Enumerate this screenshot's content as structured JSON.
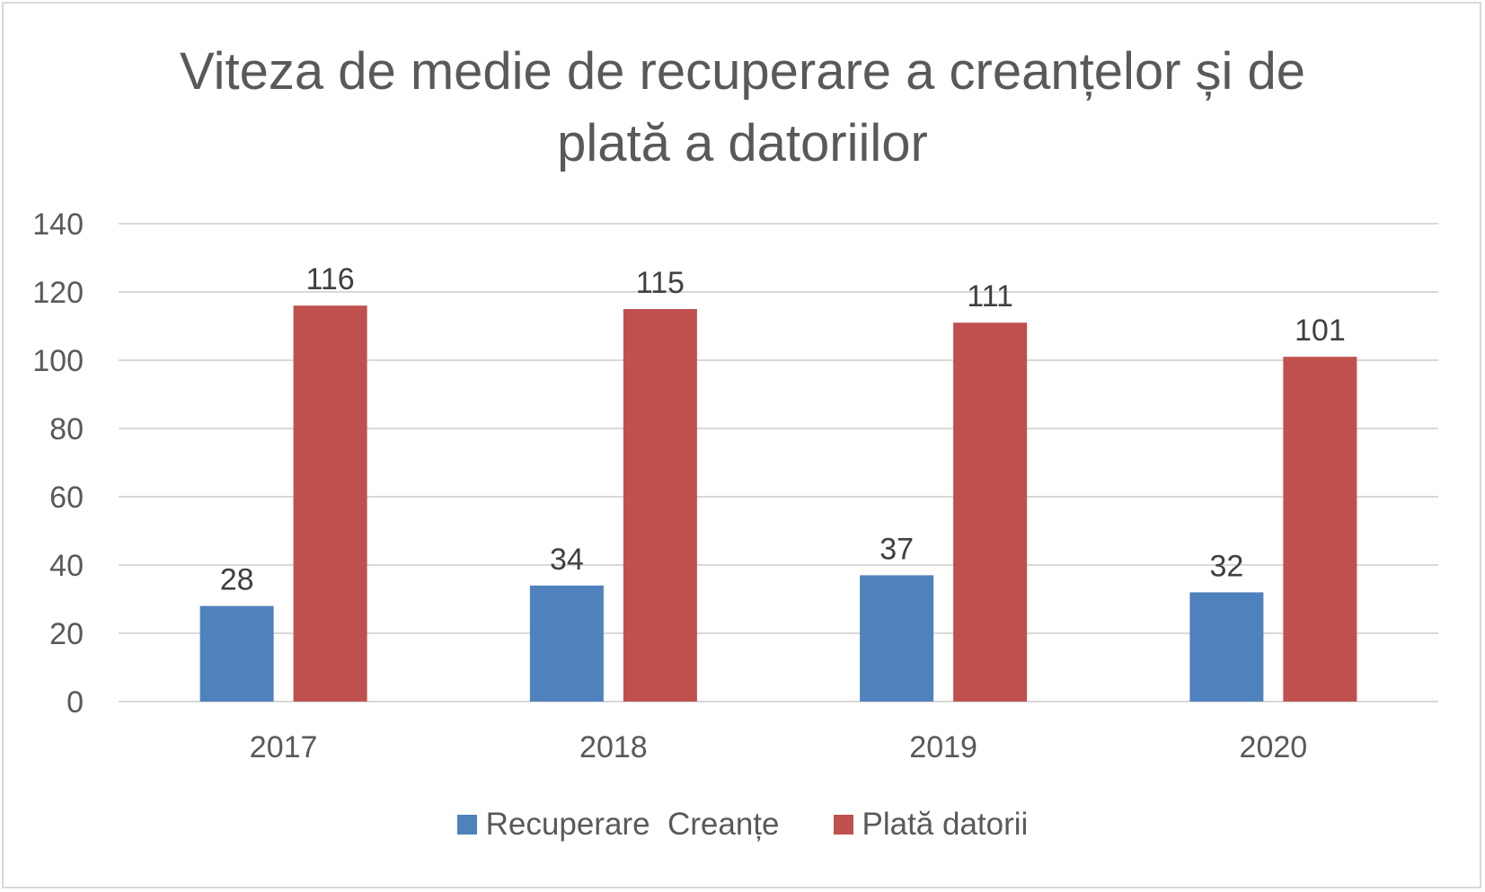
{
  "chart_data": {
    "type": "bar",
    "title_lines": [
      "Viteza de medie de recuperare a creanțelor și de",
      "plată a datoriilor"
    ],
    "categories": [
      "2017",
      "2018",
      "2019",
      "2020"
    ],
    "series": [
      {
        "name": "Recuperare  Creanțe",
        "values": [
          28,
          34,
          37,
          32
        ],
        "color": "#4f81bd"
      },
      {
        "name": "Plată datorii",
        "values": [
          116,
          115,
          111,
          101
        ],
        "color": "#c0504d"
      }
    ],
    "ylim": [
      0,
      140
    ],
    "yticks": [
      0,
      20,
      40,
      60,
      80,
      100,
      120,
      140
    ],
    "grid": true,
    "legend_position": "bottom",
    "gridline_color": "#d9d9d9"
  }
}
